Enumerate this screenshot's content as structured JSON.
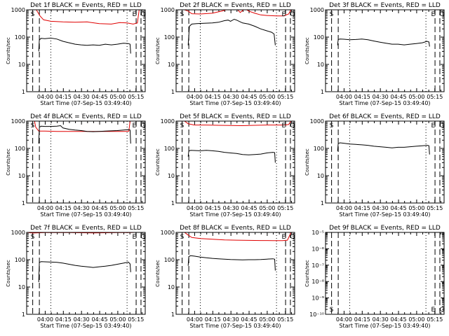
{
  "colors": {
    "events": "#000000",
    "lld": "#e00000",
    "background": "#ffffff",
    "axis": "#000000"
  },
  "chart_data": {
    "type": "line",
    "panel_layout": "3x3 grid",
    "x_axis": {
      "label": "Start Time (07-Sep-15 03:49:40)",
      "ticks": [
        "04:00",
        "04:15",
        "04:30",
        "04:45",
        "05:00",
        "05:15"
      ],
      "range_minutes_from_start": [
        -5,
        93
      ]
    },
    "y_label": "Counts/sec",
    "series_names": [
      "Events",
      "LLD"
    ],
    "panels": [
      {
        "title": "Det 1f BLACK = Events, RED = LLD",
        "yscale": "log",
        "ylim": [
          1,
          1000
        ],
        "ytick_labels": [
          "1000",
          "100",
          "10",
          "1"
        ],
        "lld": {
          "x": [
            -5,
            -2,
            3,
            6,
            9,
            15,
            25,
            35,
            45,
            55,
            65,
            72,
            78,
            83,
            86.5,
            88,
            90
          ],
          "y": [
            1000,
            1000,
            1000,
            600,
            430,
            380,
            360,
            350,
            360,
            310,
            300,
            340,
            330,
            300,
            330,
            1000,
            1000
          ]
        },
        "events": {
          "x": [
            5,
            5.5,
            7,
            10,
            15,
            20,
            25,
            30,
            35,
            40,
            45,
            50,
            55,
            60,
            65,
            70,
            75,
            79,
            80.5,
            81
          ],
          "y": [
            30,
            80,
            90,
            88,
            92,
            85,
            70,
            62,
            55,
            52,
            50,
            52,
            50,
            55,
            52,
            55,
            60,
            58,
            55,
            25
          ]
        },
        "markers": {
          "S": 0,
          "E": 84,
          "Q": 91
        },
        "dashed_lines": [
          0,
          5.5,
          85.5,
          89.5
        ],
        "dotted_lines": [
          15,
          78
        ]
      },
      {
        "title": "Det 2f BLACK = Events, RED = LLD",
        "yscale": "log",
        "ylim": [
          1,
          1000
        ],
        "ytick_labels": [
          "1000",
          "100",
          "10",
          "1"
        ],
        "lld": {
          "x": [
            -5,
            -2,
            2,
            5,
            8,
            15,
            25,
            35,
            40,
            45,
            48,
            52,
            55,
            60,
            65,
            70,
            78,
            84,
            88,
            90
          ],
          "y": [
            1000,
            1000,
            1000,
            900,
            720,
            700,
            750,
            950,
            1300,
            1100,
            800,
            1100,
            900,
            750,
            650,
            620,
            600,
            600,
            700,
            1000
          ]
        },
        "events": {
          "x": [
            5,
            6,
            8,
            12,
            18,
            25,
            30,
            35,
            38,
            40,
            43,
            45,
            50,
            55,
            60,
            65,
            70,
            74,
            76,
            77
          ],
          "y": [
            50,
            250,
            300,
            310,
            320,
            330,
            350,
            400,
            420,
            380,
            450,
            420,
            330,
            300,
            250,
            200,
            170,
            150,
            130,
            50
          ]
        },
        "markers": {
          "S": 0,
          "E": 84,
          "Q": 91
        },
        "dashed_lines": [
          0,
          5.5,
          85.5,
          89.5
        ],
        "dotted_lines": [
          15,
          78
        ]
      },
      {
        "title": "Det 3f BLACK = Events, RED = LLD",
        "yscale": "log",
        "ylim": [
          1,
          1000
        ],
        "ytick_labels": [
          "1000",
          "100",
          "10",
          "1"
        ],
        "lld": null,
        "events": {
          "x": [
            5,
            5.5,
            7,
            10,
            15,
            20,
            25,
            30,
            35,
            40,
            45,
            50,
            55,
            60,
            65,
            70,
            75,
            79,
            80.5,
            81
          ],
          "y": [
            50,
            82,
            85,
            84,
            80,
            82,
            85,
            80,
            72,
            65,
            60,
            55,
            55,
            52,
            55,
            58,
            62,
            70,
            66,
            45
          ]
        },
        "markers": {
          "S": 0,
          "E": 84,
          "Q": 91
        },
        "dashed_lines": [
          0,
          5.5,
          85.5,
          89.5
        ],
        "dotted_lines": [
          15,
          78
        ]
      },
      {
        "title": "Det 4f BLACK = Events, RED = LLD",
        "yscale": "log",
        "ylim": [
          1,
          1000
        ],
        "ytick_labels": [
          "1000",
          "100",
          "10",
          "1"
        ],
        "lld": {
          "x": [
            -5,
            -2,
            1.5,
            2.5,
            5,
            10,
            20,
            30,
            40,
            50,
            60,
            70,
            77,
            79.5,
            80.5,
            83
          ],
          "y": [
            1000,
            1000,
            1000,
            600,
            430,
            430,
            420,
            420,
            420,
            420,
            420,
            420,
            420,
            430,
            1000,
            1000
          ]
        },
        "events": {
          "x": [
            5,
            5.5,
            7,
            10,
            15,
            20,
            23,
            25,
            30,
            35,
            40,
            45,
            50,
            55,
            60,
            65,
            70,
            75,
            79,
            80.5,
            81
          ],
          "y": [
            150,
            600,
            650,
            640,
            640,
            650,
            680,
            560,
            500,
            470,
            450,
            420,
            410,
            420,
            430,
            440,
            450,
            470,
            490,
            470,
            150
          ]
        },
        "markers": {
          "S": 0,
          "E": 84,
          "Q": 91
        },
        "dashed_lines": [
          0,
          5.5,
          85.5,
          89.5
        ],
        "dotted_lines": [
          15,
          78
        ]
      },
      {
        "title": "Det 5f BLACK = Events, RED = LLD",
        "yscale": "log",
        "ylim": [
          1,
          1000
        ],
        "ytick_labels": [
          "1000",
          "100",
          "10",
          "1"
        ],
        "lld": {
          "x": [
            -5,
            -2,
            2,
            5,
            10,
            20,
            30,
            40,
            50,
            60,
            70,
            78,
            84,
            88,
            90
          ],
          "y": [
            1000,
            1000,
            1000,
            800,
            720,
            720,
            700,
            690,
            680,
            700,
            720,
            720,
            720,
            750,
            1000
          ]
        },
        "events": {
          "x": [
            5,
            5.5,
            7,
            10,
            15,
            20,
            25,
            30,
            35,
            40,
            45,
            50,
            55,
            60,
            65,
            70,
            75,
            76.5,
            77
          ],
          "y": [
            50,
            80,
            85,
            84,
            82,
            85,
            82,
            78,
            72,
            68,
            65,
            60,
            58,
            60,
            62,
            68,
            72,
            70,
            30
          ]
        },
        "markers": {
          "S": 0,
          "E": 84,
          "Q": 91
        },
        "dashed_lines": [
          0,
          5.5,
          85.5,
          89.5
        ],
        "dotted_lines": [
          15,
          78
        ]
      },
      {
        "title": "Det 6f BLACK = Events, RED = LLD",
        "yscale": "log",
        "ylim": [
          1,
          1000
        ],
        "ytick_labels": [
          "1000",
          "100",
          "10",
          "1"
        ],
        "lld": null,
        "events": {
          "x": [
            5,
            5.5,
            7,
            10,
            15,
            20,
            25,
            30,
            35,
            40,
            45,
            50,
            55,
            60,
            65,
            70,
            75,
            79,
            80.5,
            81
          ],
          "y": [
            80,
            150,
            160,
            155,
            145,
            140,
            135,
            130,
            120,
            115,
            110,
            105,
            110,
            110,
            115,
            120,
            125,
            130,
            125,
            60
          ]
        },
        "markers": {
          "S": 0,
          "E": 84,
          "Q": 91
        },
        "dashed_lines": [
          0,
          5.5,
          85.5,
          89.5
        ],
        "dotted_lines": [
          15,
          78
        ]
      },
      {
        "title": "Det 7f BLACK = Events, RED = LLD",
        "yscale": "log",
        "ylim": [
          1,
          1000
        ],
        "ytick_labels": [
          "1000",
          "100",
          "10",
          "1"
        ],
        "lld": {
          "x": [
            -5,
            0,
            10,
            20,
            30,
            40,
            50,
            60,
            70,
            80,
            85,
            90
          ],
          "y": [
            1000,
            950,
            980,
            990,
            980,
            970,
            960,
            970,
            980,
            990,
            1000,
            1000
          ]
        },
        "events": {
          "x": [
            5,
            5.5,
            7,
            10,
            15,
            20,
            25,
            30,
            35,
            40,
            45,
            50,
            55,
            60,
            65,
            70,
            75,
            79,
            80.5,
            81
          ],
          "y": [
            15,
            80,
            85,
            84,
            82,
            80,
            75,
            68,
            62,
            58,
            55,
            52,
            55,
            58,
            62,
            68,
            75,
            82,
            70,
            35
          ]
        },
        "markers": {
          "S": 0,
          "E": 84,
          "Q": 91
        },
        "dashed_lines": [
          0,
          5.5,
          85.5,
          89.5
        ],
        "dotted_lines": [
          15,
          78
        ]
      },
      {
        "title": "Det 8f BLACK = Events, RED = LLD",
        "yscale": "log",
        "ylim": [
          1,
          1000
        ],
        "ytick_labels": [
          "1000",
          "100",
          "10",
          "1"
        ],
        "lld": {
          "x": [
            -5,
            -2,
            2,
            5,
            8,
            15,
            25,
            35,
            45,
            55,
            65,
            75,
            83,
            87,
            89,
            90
          ],
          "y": [
            1000,
            1000,
            1000,
            800,
            650,
            600,
            560,
            530,
            520,
            510,
            505,
            500,
            500,
            520,
            800,
            1000
          ]
        },
        "events": {
          "x": [
            5,
            5.5,
            7,
            10,
            15,
            20,
            25,
            30,
            35,
            40,
            45,
            50,
            55,
            60,
            65,
            70,
            75,
            76.5,
            77
          ],
          "y": [
            60,
            130,
            140,
            135,
            125,
            118,
            112,
            108,
            105,
            102,
            100,
            98,
            100,
            100,
            102,
            105,
            108,
            104,
            40
          ]
        },
        "markers": {
          "S": 0,
          "E": 84,
          "Q": 91
        },
        "dashed_lines": [
          0,
          5.5,
          85.5,
          89.5
        ],
        "dotted_lines": [
          15,
          78
        ]
      },
      {
        "title": "Det 9f BLACK = Events, RED = LLD",
        "yscale": "log",
        "ylim": [
          1e-10,
          1e-05
        ],
        "ytick_labels": [
          "10⁻⁵",
          "10⁻⁶",
          "10⁻⁷",
          "10⁻⁸",
          "10⁻⁹",
          "10⁻¹⁰"
        ],
        "lld": null,
        "events": null,
        "markers": {
          "S": 0,
          "E": 84,
          "Q": 91
        },
        "dashed_lines": [
          0,
          5.5,
          85.5,
          89.5
        ],
        "dotted_lines": [
          15,
          78
        ]
      }
    ]
  }
}
